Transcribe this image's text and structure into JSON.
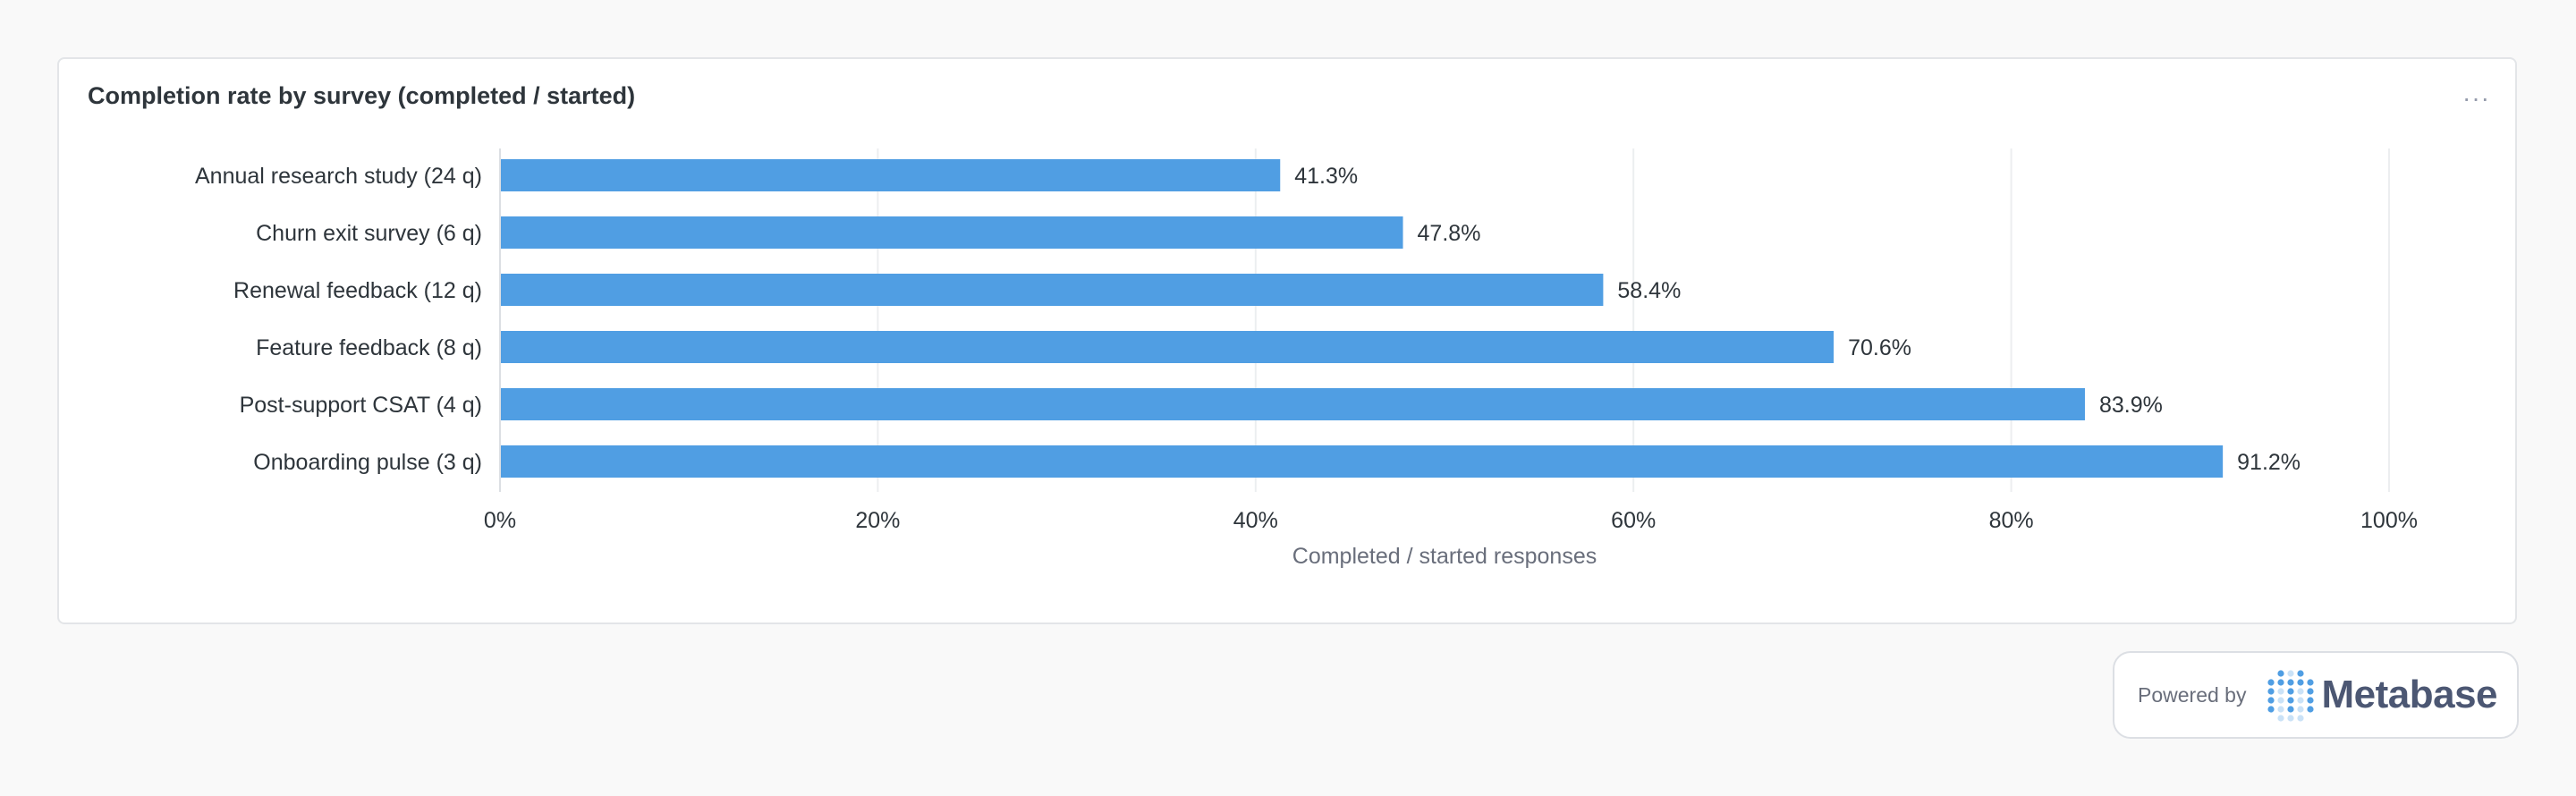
{
  "card": {
    "title": "Completion rate by survey (completed / started)",
    "menu_icon": "ellipsis-icon",
    "menu_glyph": "···"
  },
  "chart_data": {
    "type": "bar",
    "orientation": "horizontal",
    "categories": [
      "Annual research study (24 q)",
      "Churn exit survey (6 q)",
      "Renewal feedback (12 q)",
      "Feature feedback (8 q)",
      "Post-support CSAT (4 q)",
      "Onboarding pulse (3 q)"
    ],
    "values": [
      41.3,
      47.8,
      58.4,
      70.6,
      83.9,
      91.2
    ],
    "data_labels": [
      "41.3%",
      "47.8%",
      "58.4%",
      "70.6%",
      "83.9%",
      "91.2%"
    ],
    "xlabel": "Completed / started responses",
    "ylabel": "",
    "xlim": [
      0,
      100
    ],
    "ticks": [
      0,
      20,
      40,
      60,
      80,
      100
    ],
    "tick_labels": [
      "0%",
      "20%",
      "40%",
      "60%",
      "80%",
      "100%"
    ],
    "grid": true,
    "bar_color": "#509ee3"
  },
  "footer": {
    "powered_label": "Powered by",
    "brand": "Metabase",
    "logo_icon": "metabase-logo-icon"
  },
  "colors": {
    "bar": "#509ee3",
    "grid": "#eceef0",
    "text": "#2e353b",
    "axis_title": "#696e7b",
    "logo_dot": "#509ee3"
  }
}
